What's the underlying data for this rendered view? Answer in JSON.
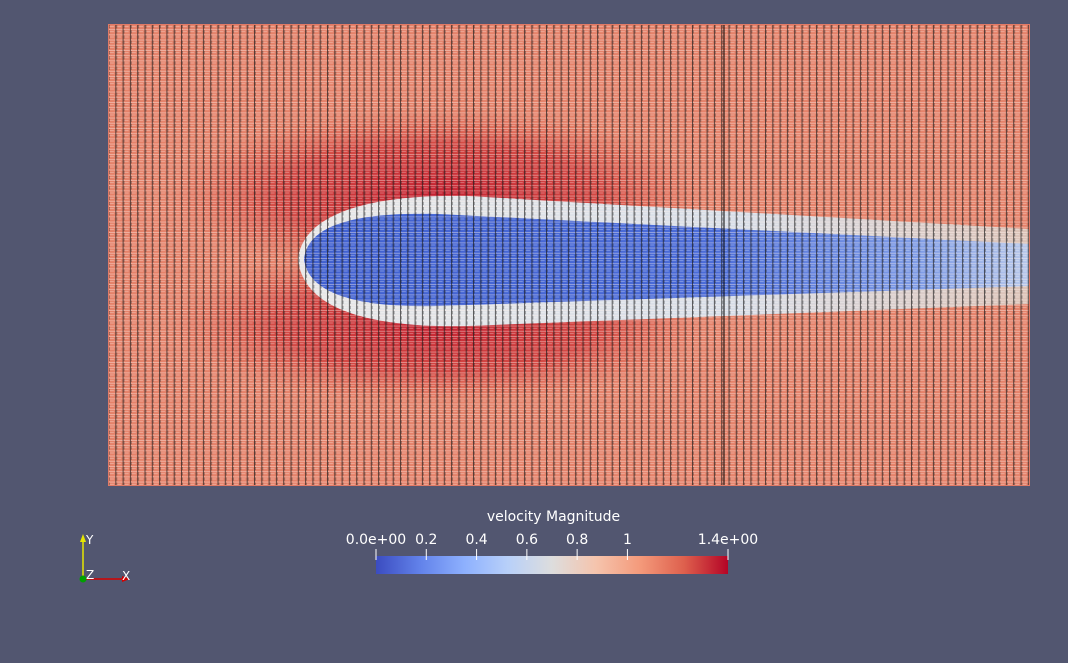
{
  "colors": {
    "background": "#525670",
    "colormap": [
      "#3b4cc0",
      "#6282ea",
      "#8db0fe",
      "#b8d0f9",
      "#dddddd",
      "#f5c4ad",
      "#f49a7b",
      "#de604d",
      "#b40426"
    ]
  },
  "colorbar": {
    "title": "velocity Magnitude",
    "range": [
      0.0,
      1.4
    ],
    "ticks": [
      {
        "value": 0.0,
        "label": "0.0e+00"
      },
      {
        "value": 0.2,
        "label": "0.2"
      },
      {
        "value": 0.4,
        "label": "0.4"
      },
      {
        "value": 0.6,
        "label": "0.6"
      },
      {
        "value": 0.8,
        "label": "0.8"
      },
      {
        "value": 1.0,
        "label": "1"
      },
      {
        "value": 1.4,
        "label": "1.4e+00"
      }
    ]
  },
  "orientation_axes": {
    "y_label": "Y",
    "z_label": "Z",
    "x_label": "X",
    "x_color": "#d40000",
    "y_color": "#e6e600",
    "z_color": "#00a000"
  }
}
